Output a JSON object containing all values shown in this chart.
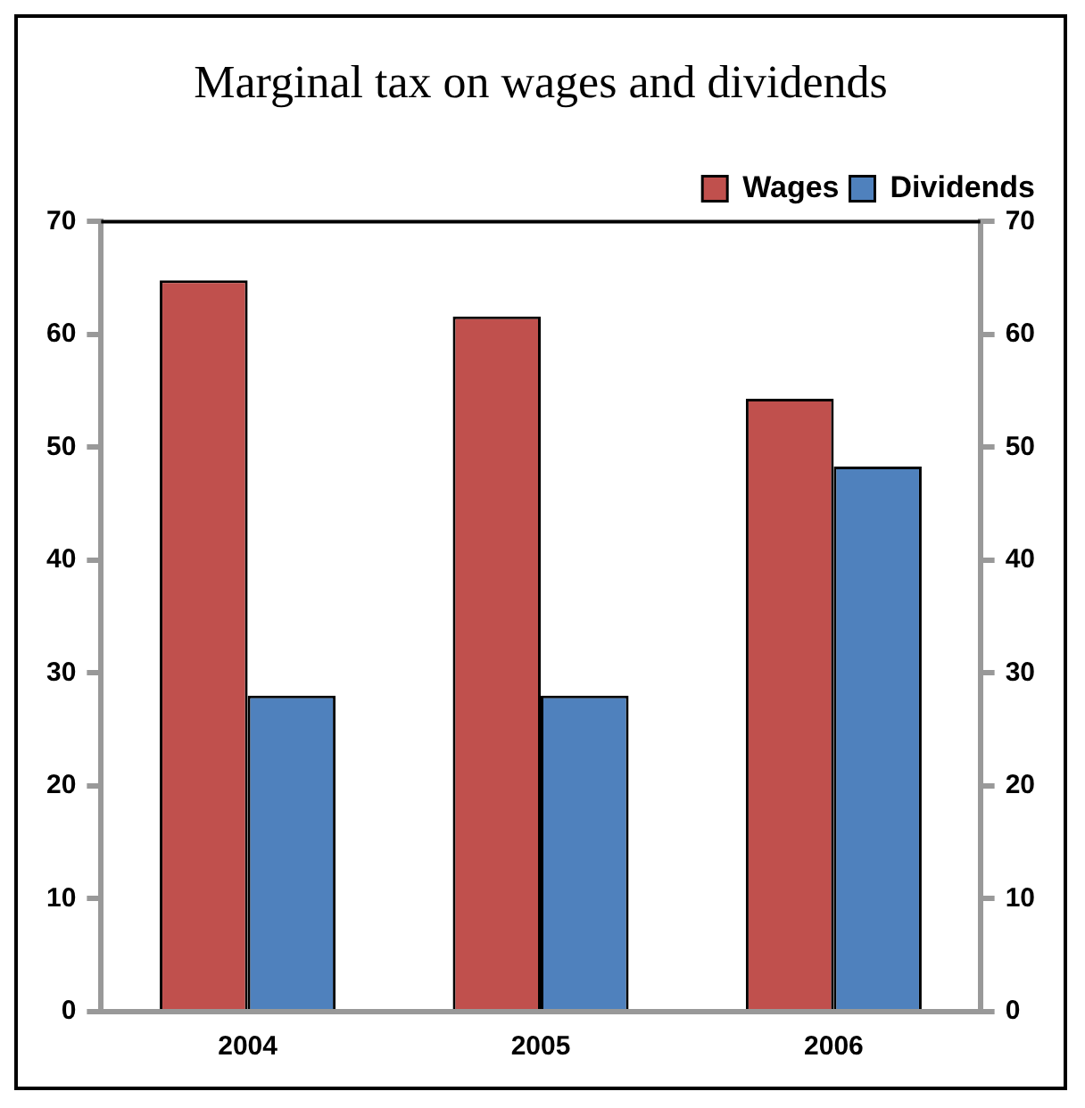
{
  "chart_data": {
    "type": "bar",
    "title": "Marginal tax on wages and dividends",
    "categories": [
      "2004",
      "2005",
      "2006"
    ],
    "series": [
      {
        "name": "Wages",
        "color": "#c0504d",
        "values": [
          64.8,
          61.6,
          54.3
        ]
      },
      {
        "name": "Dividends",
        "color": "#4f81bd",
        "values": [
          28.0,
          28.0,
          48.3
        ]
      }
    ],
    "ylim": [
      0,
      70
    ],
    "yticks": [
      0,
      10,
      20,
      30,
      40,
      50,
      60,
      70
    ],
    "y2lim": [
      0,
      70
    ],
    "y2ticks": [
      0,
      10,
      20,
      30,
      40,
      50,
      60,
      70
    ],
    "grid": false,
    "legend": "top right"
  }
}
